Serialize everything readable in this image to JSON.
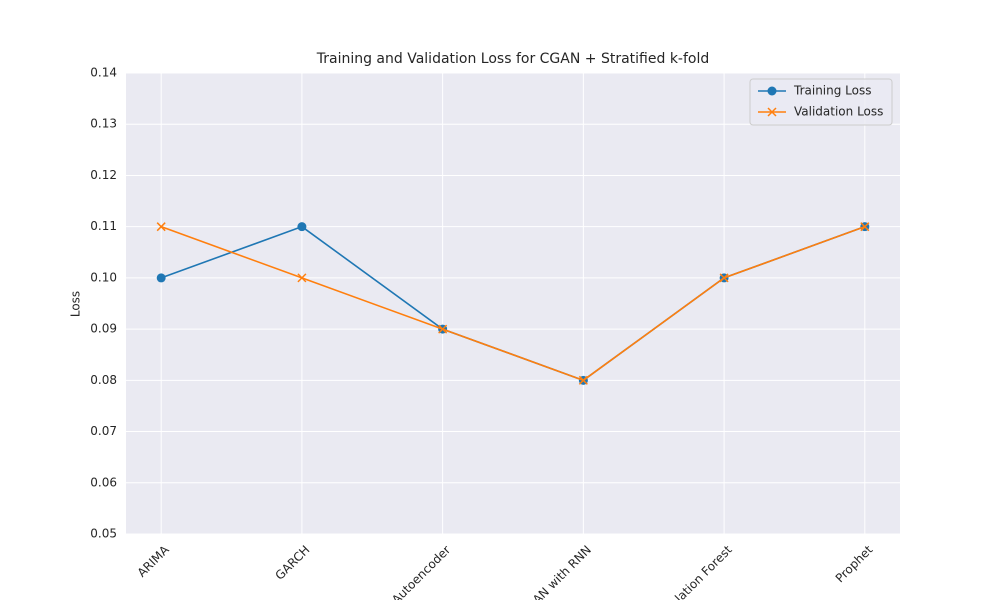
{
  "chart_data": {
    "type": "line",
    "title": "Training and Validation Loss for CGAN + Stratified k-fold",
    "y_label": "Loss",
    "categories": [
      "ARIMA",
      "GARCH",
      "Autoencoder",
      "GAN with RNN",
      "Isolation Forest",
      "Prophet"
    ],
    "series": [
      {
        "name": "Training Loss",
        "color": "#1f77b4",
        "marker": "circle",
        "values": [
          0.1,
          0.11,
          0.09,
          0.08,
          0.1,
          0.11
        ]
      },
      {
        "name": "Validation Loss",
        "color": "#ff7f0e",
        "marker": "x",
        "values": [
          0.11,
          0.1,
          0.09,
          0.08,
          0.1,
          0.11
        ]
      }
    ],
    "ylim": [
      0.05,
      0.14
    ],
    "yticks": [
      0.05,
      0.06,
      0.07,
      0.08,
      0.09,
      {
        "value": 0.1,
        "label": "0.10"
      },
      0.11,
      0.12,
      0.13,
      0.14
    ],
    "grid": true,
    "legend": "upper right"
  }
}
